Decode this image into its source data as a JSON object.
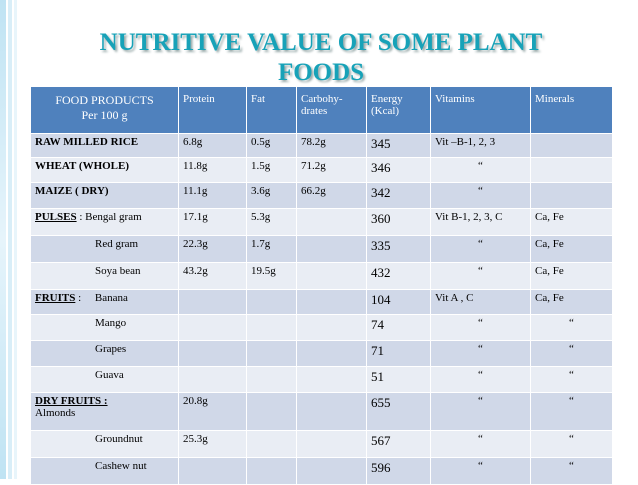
{
  "title": {
    "line1": "NUTRITIVE VALUE OF SOME PLANT",
    "line2": "FOODS"
  },
  "table": {
    "header": {
      "food": [
        "FOOD PRODUCTS",
        "Per 100 g"
      ],
      "protein": [
        "Protein"
      ],
      "fat": [
        "Fat"
      ],
      "carbs": [
        "Carbohy-",
        "drates"
      ],
      "energy": [
        "Energy",
        "(Kcal)"
      ],
      "vitamins": [
        "Vitamins"
      ],
      "minerals": [
        "Minerals"
      ]
    },
    "rows": [
      {
        "group": "RAW MILLED RICE",
        "cells": [
          "6.8g",
          "0.5g",
          "78.2g",
          "345",
          "Vit –B-1, 2, 3",
          null
        ]
      },
      {
        "group": "WHEAT (WHOLE)",
        "cells": [
          "11.8g",
          "1.5g",
          "71.2g",
          "346",
          "“",
          null
        ]
      },
      {
        "group": "MAIZE ( DRY)",
        "cells": [
          "11.1g",
          "3.6g",
          "66.2g",
          "342",
          "“",
          null
        ]
      },
      {
        "group": "PULSES",
        "detail": " : Bengal gram",
        "cells": [
          "17.1g",
          "5.3g",
          null,
          "360",
          "Vit B-1, 2, 3, C",
          "Ca, Fe"
        ]
      },
      {
        "item": "Red gram",
        "cells": [
          "22.3g",
          "1.7g",
          null,
          "335",
          "“",
          "Ca, Fe"
        ]
      },
      {
        "item": "Soya bean",
        "cells": [
          "43.2g",
          "19.5g",
          null,
          "432",
          "“",
          "Ca, Fe"
        ]
      },
      {
        "group": "FRUITS",
        "detail": " :     Banana",
        "cells": [
          null,
          null,
          null,
          "104",
          "Vit  A , C",
          "Ca, Fe"
        ]
      },
      {
        "item": "Mango",
        "cells": [
          null,
          null,
          null,
          "74",
          "“",
          "“"
        ]
      },
      {
        "item": "Grapes",
        "cells": [
          null,
          null,
          null,
          "71",
          "“",
          "“"
        ]
      },
      {
        "item": "Guava",
        "cells": [
          null,
          null,
          null,
          "51",
          "“",
          "“"
        ]
      },
      {
        "group": "DRY FRUITS :",
        "below": "Almonds",
        "cells": [
          "20.8g",
          null,
          null,
          "655",
          "“",
          "“"
        ]
      },
      {
        "item": "Groundnut",
        "cells": [
          "25.3g",
          null,
          null,
          "567",
          "“",
          "“"
        ]
      },
      {
        "item": "Cashew nut",
        "cells": [
          null,
          null,
          null,
          "596",
          "“",
          "“"
        ]
      }
    ]
  }
}
